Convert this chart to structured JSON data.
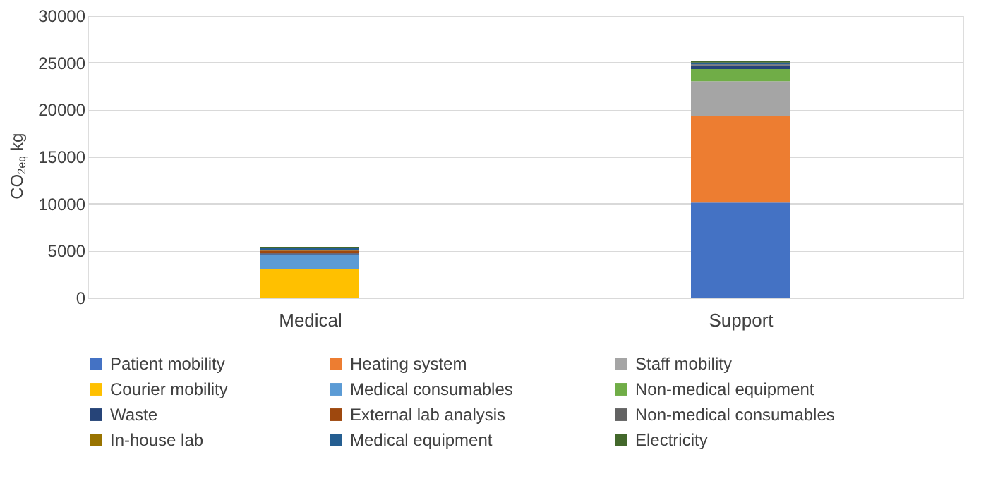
{
  "chart_data": {
    "type": "bar",
    "stacked": true,
    "ylabel": "CO$_{2eq}$ kg",
    "categories": [
      "Medical",
      "Support"
    ],
    "ylim": [
      0,
      30000
    ],
    "yticks": [
      0,
      5000,
      10000,
      15000,
      20000,
      25000,
      30000
    ],
    "grid": "y",
    "legend": "bottom",
    "series": [
      {
        "name": "Patient mobility",
        "color": "#4472c4",
        "values": [
          0,
          10100
        ]
      },
      {
        "name": "Heating system",
        "color": "#ed7d31",
        "values": [
          0,
          9200
        ]
      },
      {
        "name": "Staff mobility",
        "color": "#a5a5a5",
        "values": [
          0,
          3700
        ]
      },
      {
        "name": "Courier mobility",
        "color": "#ffc000",
        "values": [
          3000,
          0
        ]
      },
      {
        "name": "Medical consumables",
        "color": "#5b9bd5",
        "values": [
          1600,
          0
        ]
      },
      {
        "name": "Non-medical equipment",
        "color": "#70ad47",
        "values": [
          0,
          1300
        ]
      },
      {
        "name": "Waste",
        "color": "#264478",
        "values": [
          100,
          400
        ]
      },
      {
        "name": "External lab analysis",
        "color": "#9e480e",
        "values": [
          300,
          0
        ]
      },
      {
        "name": "Non-medical consumables",
        "color": "#636363",
        "values": [
          0,
          100
        ]
      },
      {
        "name": "In-house lab",
        "color": "#997300",
        "values": [
          100,
          0
        ]
      },
      {
        "name": "Medical equipment",
        "color": "#255e91",
        "values": [
          200,
          200
        ]
      },
      {
        "name": "Electricity",
        "color": "#43682b",
        "values": [
          100,
          200
        ]
      }
    ]
  }
}
